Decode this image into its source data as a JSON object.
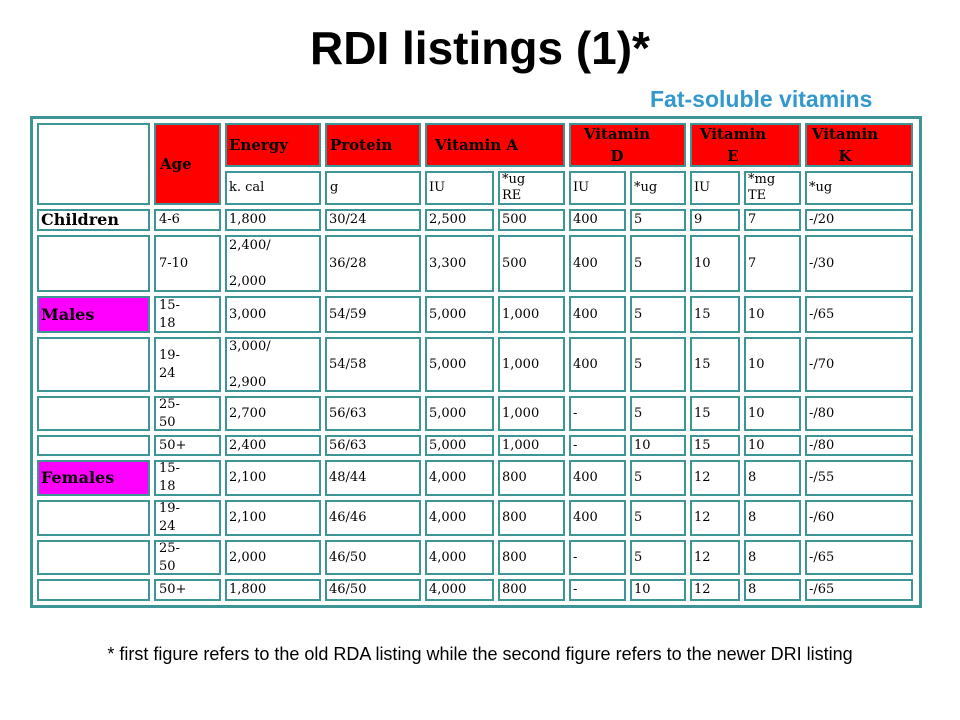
{
  "slide": {
    "title": "RDI listings (1)*",
    "subtitle": "Fat-soluble vitamins",
    "footnote": "* first figure refers to the old RDA listing while the second figure refers to the newer DRI listing"
  },
  "colors": {
    "header_fill": "#FF0000",
    "group_highlight": "#FF00FF",
    "table_border": "#3E9595",
    "subtitle": "#3399CC"
  },
  "table": {
    "header": {
      "age": "Age",
      "energy": "Energy",
      "protein": "Protein",
      "vitamin_a": "Vitamin A",
      "vitamin_d": "Vitamin D",
      "vitamin_e": "Vitamin E",
      "vitamin_k": "Vitamin K"
    },
    "units": {
      "energy": "k. cal",
      "protein": "g",
      "a_iu": "IU",
      "a_re": "*ug RE",
      "d_iu": "IU",
      "d_ug": "*ug",
      "e_iu": "IU",
      "e_te": "*mg TE",
      "k_ug": "*ug"
    },
    "rows": [
      {
        "group": "Children",
        "group_highlight": false,
        "age": "4-6",
        "energy": "1,800",
        "protein": "30/24",
        "a_iu": "2,500",
        "a_re": "500",
        "d_iu": "400",
        "d_ug": "5",
        "e_iu": "9",
        "e_te": "7",
        "k_ug": "-/20"
      },
      {
        "group": "",
        "group_highlight": false,
        "age": "7-10",
        "energy": "2,400/\n2,000",
        "protein": "36/28",
        "a_iu": "3,300",
        "a_re": "500",
        "d_iu": "400",
        "d_ug": "5",
        "e_iu": "10",
        "e_te": "7",
        "k_ug": "-/30"
      },
      {
        "group": "Males",
        "group_highlight": true,
        "age": "15-\n18",
        "energy": "3,000",
        "protein": "54/59",
        "a_iu": "5,000",
        "a_re": "1,000",
        "d_iu": "400",
        "d_ug": "5",
        "e_iu": "15",
        "e_te": "10",
        "k_ug": "-/65"
      },
      {
        "group": "",
        "group_highlight": false,
        "age": "19-\n24",
        "energy": "3,000/\n2,900",
        "protein": "54/58",
        "a_iu": "5,000",
        "a_re": "1,000",
        "d_iu": "400",
        "d_ug": "5",
        "e_iu": "15",
        "e_te": "10",
        "k_ug": "-/70"
      },
      {
        "group": "",
        "group_highlight": false,
        "age": "25-\n50",
        "energy": "2,700",
        "protein": "56/63",
        "a_iu": "5,000",
        "a_re": "1,000",
        "d_iu": "-",
        "d_ug": "5",
        "e_iu": "15",
        "e_te": "10",
        "k_ug": "-/80"
      },
      {
        "group": "",
        "group_highlight": false,
        "age": "50+",
        "energy": "2,400",
        "protein": "56/63",
        "a_iu": "5,000",
        "a_re": "1,000",
        "d_iu": "-",
        "d_ug": "10",
        "e_iu": "15",
        "e_te": "10",
        "k_ug": "-/80"
      },
      {
        "group": "Females",
        "group_highlight": true,
        "age": "15-\n18",
        "energy": "2,100",
        "protein": "48/44",
        "a_iu": "4,000",
        "a_re": "800",
        "d_iu": "400",
        "d_ug": "5",
        "e_iu": "12",
        "e_te": "8",
        "k_ug": "-/55"
      },
      {
        "group": "",
        "group_highlight": false,
        "age": "19-\n24",
        "energy": "2,100",
        "protein": "46/46",
        "a_iu": "4,000",
        "a_re": "800",
        "d_iu": "400",
        "d_ug": "5",
        "e_iu": "12",
        "e_te": "8",
        "k_ug": "-/60"
      },
      {
        "group": "",
        "group_highlight": false,
        "age": "25-\n50",
        "energy": "2,000",
        "protein": "46/50",
        "a_iu": "4,000",
        "a_re": "800",
        "d_iu": "-",
        "d_ug": "5",
        "e_iu": "12",
        "e_te": "8",
        "k_ug": "-/65"
      },
      {
        "group": "",
        "group_highlight": false,
        "age": "50+",
        "energy": "1,800",
        "protein": "46/50",
        "a_iu": "4,000",
        "a_re": "800",
        "d_iu": "-",
        "d_ug": "10",
        "e_iu": "12",
        "e_te": "8",
        "k_ug": "-/65"
      }
    ]
  }
}
